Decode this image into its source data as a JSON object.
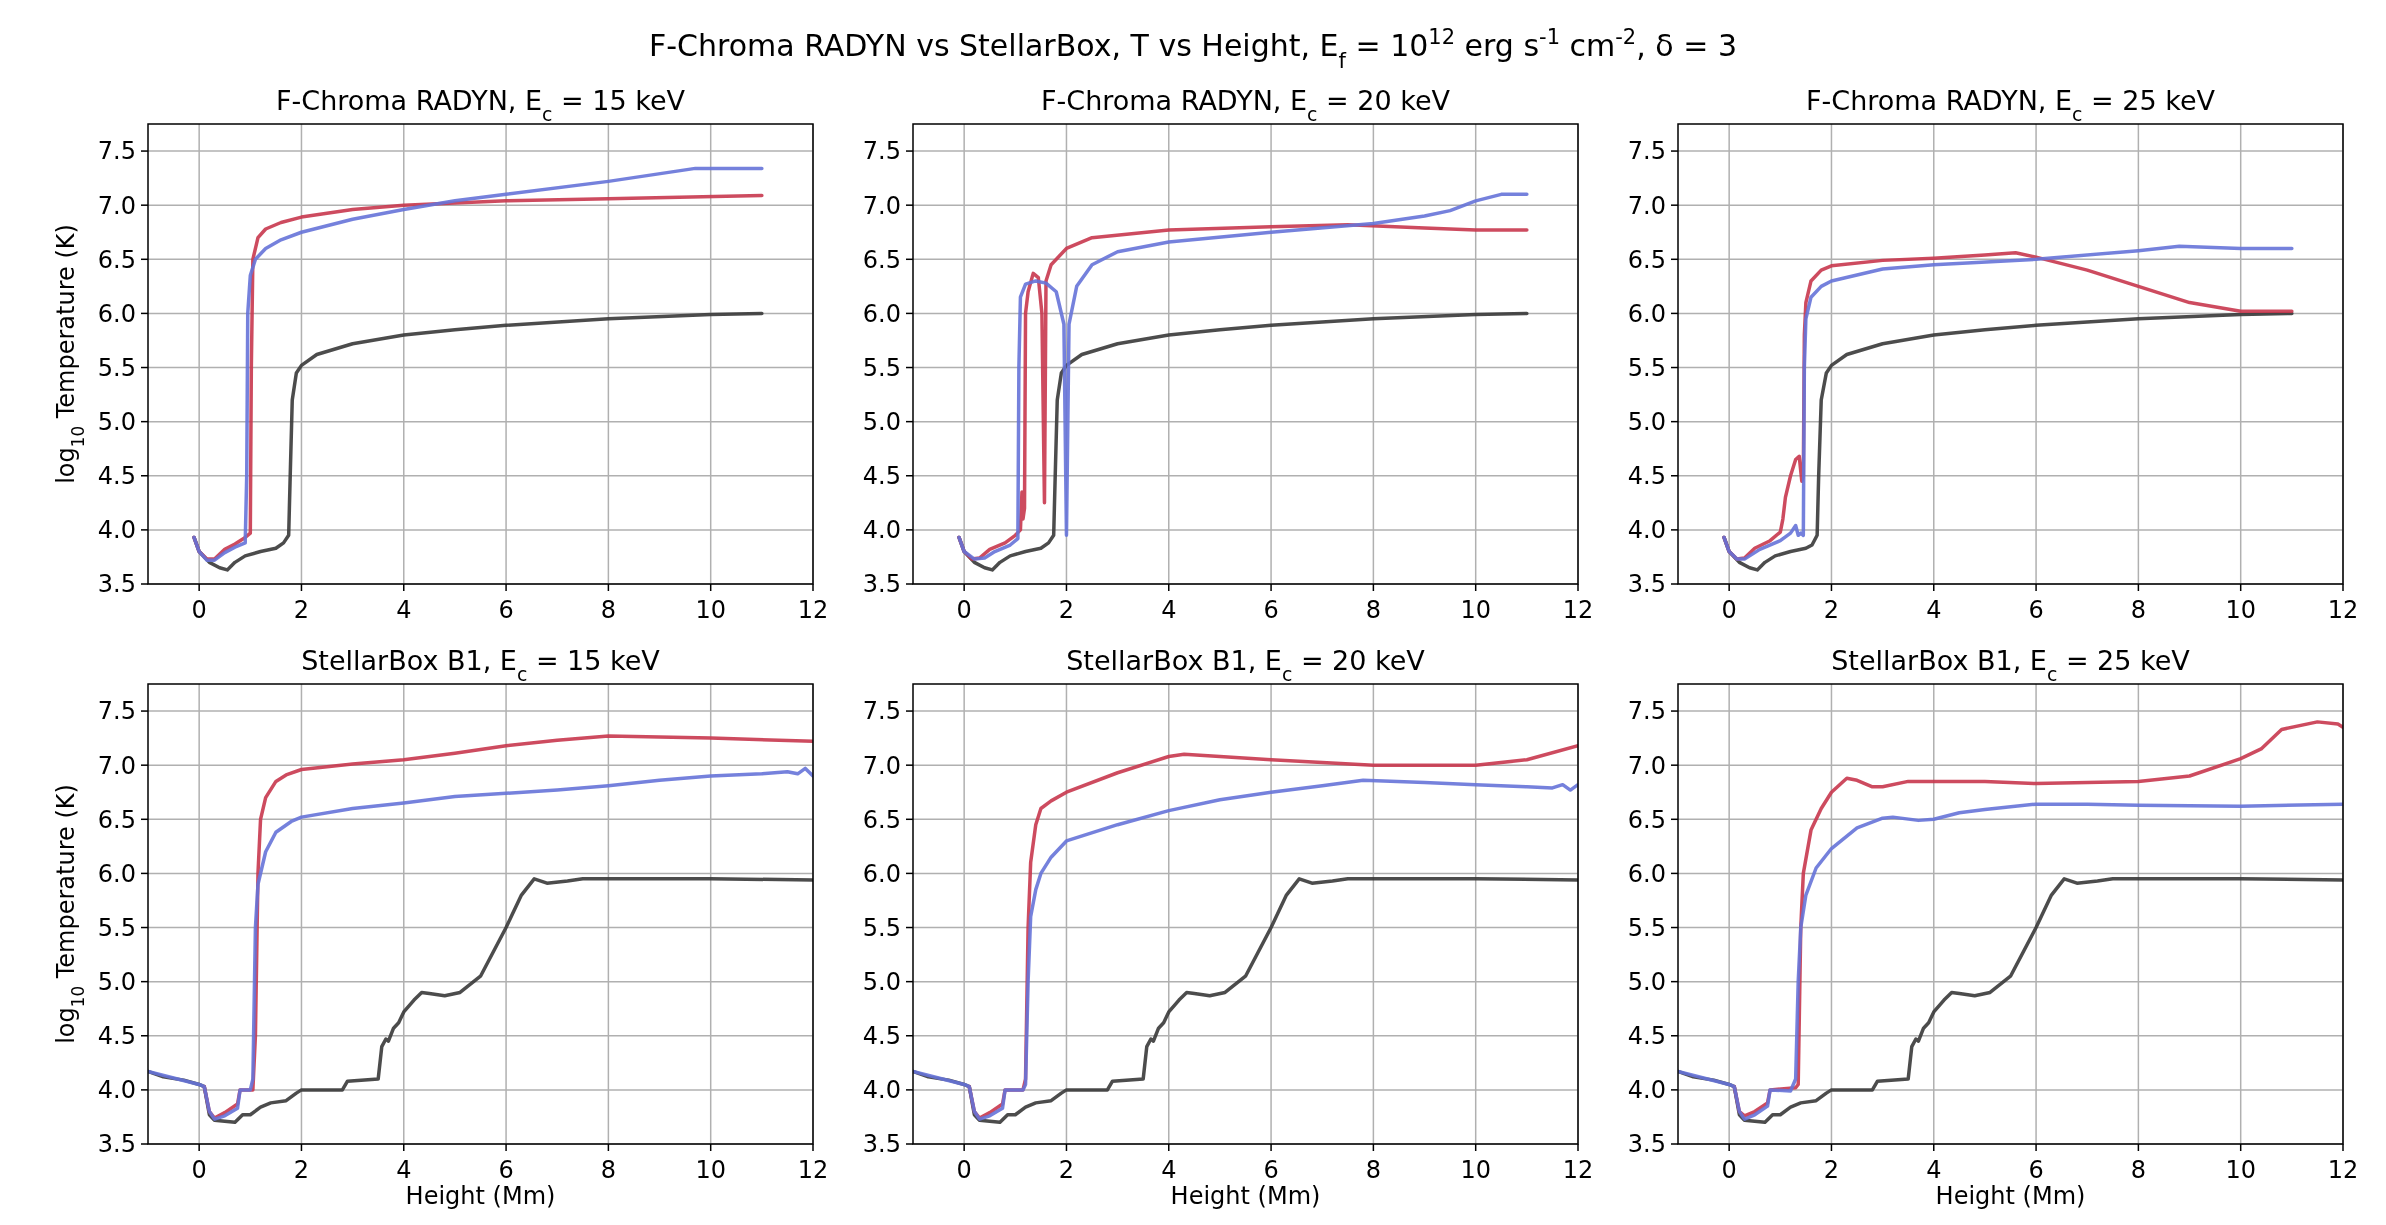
{
  "chart_data": [
    {
      "type": "line",
      "title": "F-Chroma RADYN, E$_{c}$ = 15 keV",
      "annotations": [
        "F-Chroma RADYN vs StellarBox, T vs Height, E$_{f}$ = 10$^{12}$ erg s$^{-1}$ cm$^{-2}$, δ = 3"
      ],
      "ylabel": "log$_{10}$ Temperature (K)",
      "xlim": [
        -1,
        12
      ],
      "xticks": [
        0,
        2,
        4,
        6,
        8,
        10,
        12
      ],
      "ylim": [
        3.5,
        7.75
      ],
      "yticks": [
        3.5,
        {
          "value": 4,
          "label": "4.0"
        },
        4.5,
        {
          "value": 5,
          "label": "5.0"
        },
        5.5,
        {
          "value": 6,
          "label": "6.0"
        },
        6.5,
        {
          "value": 7,
          "label": "7.0"
        },
        7.5
      ],
      "grid": true,
      "line_style": "solid",
      "series": [
        {
          "color": "#383838",
          "x": [
            -0.1,
            0,
            0.2,
            0.4,
            0.55,
            0.7,
            0.9,
            1.2,
            1.5,
            1.65,
            1.75,
            1.78,
            1.82,
            1.9,
            2,
            2.3,
            3,
            4,
            5,
            6,
            8,
            10,
            11
          ],
          "values": [
            3.93,
            3.8,
            3.7,
            3.65,
            3.63,
            3.7,
            3.76,
            3.8,
            3.83,
            3.88,
            3.95,
            4.5,
            5.2,
            5.45,
            5.52,
            5.62,
            5.72,
            5.8,
            5.85,
            5.89,
            5.95,
            5.99,
            6.0
          ]
        },
        {
          "color": "#c8374e",
          "x": [
            -0.1,
            0,
            0.15,
            0.3,
            0.5,
            0.7,
            0.9,
            1.0,
            1.02,
            1.05,
            1.15,
            1.3,
            1.6,
            2,
            3,
            4,
            6,
            8,
            11
          ],
          "values": [
            3.93,
            3.8,
            3.73,
            3.73,
            3.82,
            3.87,
            3.93,
            3.97,
            5.5,
            6.5,
            6.7,
            6.78,
            6.84,
            6.89,
            6.96,
            7.0,
            7.04,
            7.06,
            7.09
          ]
        },
        {
          "color": "#6673d8",
          "x": [
            -0.1,
            0,
            0.15,
            0.3,
            0.5,
            0.7,
            0.9,
            0.93,
            0.95,
            1.0,
            1.1,
            1.3,
            1.6,
            2,
            3,
            4,
            5,
            6,
            8,
            9.7,
            11
          ],
          "values": [
            3.93,
            3.8,
            3.72,
            3.72,
            3.79,
            3.84,
            3.88,
            4.5,
            6.0,
            6.35,
            6.5,
            6.6,
            6.68,
            6.75,
            6.87,
            6.96,
            7.04,
            7.1,
            7.22,
            7.34,
            7.34
          ]
        }
      ]
    },
    {
      "type": "line",
      "title": "F-Chroma RADYN, E$_{c}$ = 20 keV",
      "xlim": [
        -1,
        12
      ],
      "xticks": [
        0,
        2,
        4,
        6,
        8,
        10,
        12
      ],
      "ylim": [
        3.5,
        7.75
      ],
      "yticks": [
        3.5,
        {
          "value": 4,
          "label": "4.0"
        },
        4.5,
        {
          "value": 5,
          "label": "5.0"
        },
        5.5,
        {
          "value": 6,
          "label": "6.0"
        },
        6.5,
        {
          "value": 7,
          "label": "7.0"
        },
        7.5
      ],
      "grid": true,
      "line_style": "solid",
      "series": [
        {
          "color": "#383838",
          "x": [
            -0.1,
            0,
            0.2,
            0.4,
            0.55,
            0.7,
            0.9,
            1.2,
            1.5,
            1.65,
            1.75,
            1.78,
            1.82,
            1.9,
            2,
            2.3,
            3,
            4,
            5,
            6,
            8,
            10,
            11
          ],
          "values": [
            3.93,
            3.8,
            3.7,
            3.65,
            3.63,
            3.7,
            3.76,
            3.8,
            3.83,
            3.88,
            3.95,
            4.5,
            5.2,
            5.45,
            5.52,
            5.62,
            5.72,
            5.8,
            5.85,
            5.89,
            5.95,
            5.99,
            6.0
          ]
        },
        {
          "color": "#c8374e",
          "x": [
            -0.1,
            0,
            0.15,
            0.3,
            0.5,
            0.8,
            1.0,
            1.1,
            1.13,
            1.15,
            1.18,
            1.2,
            1.25,
            1.35,
            1.45,
            1.52,
            1.57,
            1.6,
            1.7,
            2,
            2.5,
            4,
            6,
            7.5,
            9,
            10,
            11
          ],
          "values": [
            3.93,
            3.8,
            3.73,
            3.74,
            3.82,
            3.88,
            3.95,
            4.0,
            4.35,
            4.1,
            4.2,
            6.0,
            6.2,
            6.37,
            6.33,
            6.0,
            4.25,
            6.3,
            6.45,
            6.6,
            6.7,
            6.77,
            6.8,
            6.82,
            6.79,
            6.77,
            6.77
          ]
        },
        {
          "color": "#6673d8",
          "x": [
            -0.1,
            0,
            0.2,
            0.4,
            0.6,
            0.9,
            1.05,
            1.07,
            1.1,
            1.2,
            1.4,
            1.6,
            1.8,
            1.95,
            2.0,
            2.05,
            2.2,
            2.5,
            3,
            4,
            6,
            8,
            9,
            9.5,
            10,
            10.5,
            11
          ],
          "values": [
            3.93,
            3.8,
            3.73,
            3.74,
            3.8,
            3.86,
            3.92,
            5.5,
            6.15,
            6.27,
            6.3,
            6.28,
            6.2,
            5.9,
            3.95,
            5.9,
            6.25,
            6.45,
            6.57,
            6.66,
            6.75,
            6.83,
            6.9,
            6.95,
            7.04,
            7.1,
            7.1
          ]
        }
      ]
    },
    {
      "type": "line",
      "title": "F-Chroma RADYN, E$_{c}$ = 25 keV",
      "xlim": [
        -1,
        12
      ],
      "xticks": [
        0,
        2,
        4,
        6,
        8,
        10,
        12
      ],
      "ylim": [
        3.5,
        7.75
      ],
      "yticks": [
        3.5,
        {
          "value": 4,
          "label": "4.0"
        },
        4.5,
        {
          "value": 5,
          "label": "5.0"
        },
        5.5,
        {
          "value": 6,
          "label": "6.0"
        },
        6.5,
        {
          "value": 7,
          "label": "7.0"
        },
        7.5
      ],
      "grid": true,
      "line_style": "solid",
      "series": [
        {
          "color": "#383838",
          "x": [
            -0.1,
            0,
            0.2,
            0.4,
            0.55,
            0.7,
            0.9,
            1.2,
            1.5,
            1.62,
            1.72,
            1.75,
            1.8,
            1.9,
            2,
            2.3,
            3,
            4,
            5,
            6,
            8,
            10,
            11
          ],
          "values": [
            3.93,
            3.8,
            3.7,
            3.65,
            3.63,
            3.7,
            3.76,
            3.8,
            3.83,
            3.86,
            3.95,
            4.5,
            5.2,
            5.45,
            5.52,
            5.62,
            5.72,
            5.8,
            5.85,
            5.89,
            5.95,
            5.99,
            6.0
          ]
        },
        {
          "color": "#c8374e",
          "x": [
            -0.1,
            0,
            0.15,
            0.3,
            0.5,
            0.8,
            1.0,
            1.05,
            1.1,
            1.2,
            1.3,
            1.37,
            1.42,
            1.45,
            1.47,
            1.5,
            1.6,
            1.8,
            2,
            3,
            4,
            5,
            5.6,
            6,
            7,
            8,
            9,
            10,
            11
          ],
          "values": [
            3.93,
            3.8,
            3.73,
            3.74,
            3.83,
            3.9,
            3.98,
            4.1,
            4.3,
            4.5,
            4.65,
            4.68,
            4.45,
            4.5,
            5.8,
            6.1,
            6.3,
            6.4,
            6.44,
            6.49,
            6.51,
            6.54,
            6.56,
            6.52,
            6.4,
            6.25,
            6.1,
            6.02,
            6.02
          ]
        },
        {
          "color": "#6673d8",
          "x": [
            -0.1,
            0,
            0.15,
            0.3,
            0.6,
            1.0,
            1.2,
            1.3,
            1.35,
            1.4,
            1.45,
            1.47,
            1.5,
            1.6,
            1.8,
            2,
            3,
            4,
            6,
            8,
            8.8,
            10,
            11
          ],
          "values": [
            3.93,
            3.8,
            3.73,
            3.73,
            3.82,
            3.9,
            3.97,
            4.04,
            3.95,
            3.97,
            3.95,
            5.5,
            5.95,
            6.15,
            6.25,
            6.3,
            6.41,
            6.45,
            6.5,
            6.58,
            6.62,
            6.6,
            6.6
          ]
        }
      ]
    },
    {
      "type": "line",
      "title": "StellarBox B1, E$_{c}$ = 15 keV",
      "ylabel": "log$_{10}$ Temperature (K)",
      "xlabel": "Height (Mm)",
      "xlim": [
        -1,
        12
      ],
      "xticks": [
        0,
        2,
        4,
        6,
        8,
        10,
        12
      ],
      "ylim": [
        3.5,
        7.75
      ],
      "yticks": [
        3.5,
        {
          "value": 4,
          "label": "4.0"
        },
        4.5,
        {
          "value": 5,
          "label": "5.0"
        },
        5.5,
        {
          "value": 6,
          "label": "6.0"
        },
        6.5,
        {
          "value": 7,
          "label": "7.0"
        },
        7.5
      ],
      "grid": true,
      "line_style": "solid",
      "series": [
        {
          "color": "#383838",
          "x": [
            -1,
            -0.7,
            -0.3,
            0,
            0.1,
            0.15,
            0.2,
            0.3,
            0.5,
            0.7,
            0.85,
            1.0,
            1.2,
            1.4,
            1.7,
            1.9,
            2,
            2.8,
            2.9,
            3.5,
            3.57,
            3.65,
            3.7,
            3.8,
            3.9,
            4.0,
            4.2,
            4.35,
            4.5,
            4.8,
            5.1,
            5.5,
            6,
            6.3,
            6.55,
            6.8,
            7.2,
            7.5,
            8,
            10,
            12
          ],
          "values": [
            4.17,
            4.12,
            4.09,
            4.05,
            4.03,
            3.9,
            3.77,
            3.72,
            3.71,
            3.7,
            3.77,
            3.77,
            3.84,
            3.88,
            3.9,
            3.97,
            4.0,
            4.0,
            4.08,
            4.1,
            4.4,
            4.47,
            4.45,
            4.57,
            4.62,
            4.72,
            4.83,
            4.9,
            4.89,
            4.87,
            4.9,
            5.05,
            5.5,
            5.8,
            5.95,
            5.91,
            5.93,
            5.95,
            5.95,
            5.95,
            5.94
          ]
        },
        {
          "color": "#c8374e",
          "x": [
            0.1,
            0.2,
            0.3,
            0.5,
            0.75,
            0.8,
            1.05,
            1.1,
            1.15,
            1.2,
            1.3,
            1.5,
            1.7,
            2,
            3,
            4,
            5,
            6,
            7,
            8,
            10,
            12
          ],
          "values": [
            4.03,
            3.8,
            3.74,
            3.79,
            3.87,
            4.0,
            4.0,
            4.5,
            6.0,
            6.5,
            6.7,
            6.85,
            6.91,
            6.96,
            7.01,
            7.05,
            7.11,
            7.18,
            7.23,
            7.27,
            7.25,
            7.22
          ]
        },
        {
          "color": "#6673d8",
          "x": [
            -1,
            -0.5,
            0,
            0.1,
            0.2,
            0.3,
            0.5,
            0.75,
            0.8,
            1.0,
            1.05,
            1.1,
            1.15,
            1.3,
            1.5,
            1.8,
            2,
            3,
            4,
            5,
            6,
            7,
            8,
            9,
            10,
            11,
            11.5,
            11.7,
            11.85,
            12
          ],
          "values": [
            4.17,
            4.11,
            4.05,
            4.03,
            3.8,
            3.73,
            3.76,
            3.83,
            4.0,
            4.0,
            4.1,
            5.5,
            5.9,
            6.2,
            6.38,
            6.48,
            6.52,
            6.6,
            6.65,
            6.71,
            6.74,
            6.77,
            6.81,
            6.86,
            6.9,
            6.92,
            6.94,
            6.92,
            6.97,
            6.9
          ]
        }
      ]
    },
    {
      "type": "line",
      "title": "StellarBox B1, E$_{c}$ = 20 keV",
      "xlabel": "Height (Mm)",
      "xlim": [
        -1,
        12
      ],
      "xticks": [
        0,
        2,
        4,
        6,
        8,
        10,
        12
      ],
      "ylim": [
        3.5,
        7.75
      ],
      "yticks": [
        3.5,
        {
          "value": 4,
          "label": "4.0"
        },
        4.5,
        {
          "value": 5,
          "label": "5.0"
        },
        5.5,
        {
          "value": 6,
          "label": "6.0"
        },
        6.5,
        {
          "value": 7,
          "label": "7.0"
        },
        7.5
      ],
      "grid": true,
      "line_style": "solid",
      "series": [
        {
          "color": "#383838",
          "x": [
            -1,
            -0.7,
            -0.3,
            0,
            0.1,
            0.15,
            0.2,
            0.3,
            0.5,
            0.7,
            0.85,
            1.0,
            1.2,
            1.4,
            1.7,
            1.9,
            2,
            2.8,
            2.9,
            3.5,
            3.57,
            3.65,
            3.7,
            3.8,
            3.9,
            4.0,
            4.2,
            4.35,
            4.5,
            4.8,
            5.1,
            5.5,
            6,
            6.3,
            6.55,
            6.8,
            7.2,
            7.5,
            8,
            10,
            12
          ],
          "values": [
            4.17,
            4.12,
            4.09,
            4.05,
            4.03,
            3.9,
            3.77,
            3.72,
            3.71,
            3.7,
            3.77,
            3.77,
            3.84,
            3.88,
            3.9,
            3.97,
            4.0,
            4.0,
            4.08,
            4.1,
            4.4,
            4.47,
            4.45,
            4.57,
            4.62,
            4.72,
            4.83,
            4.9,
            4.89,
            4.87,
            4.9,
            5.05,
            5.5,
            5.8,
            5.95,
            5.91,
            5.93,
            5.95,
            5.95,
            5.95,
            5.94
          ]
        },
        {
          "color": "#c8374e",
          "x": [
            0.1,
            0.2,
            0.3,
            0.5,
            0.75,
            0.8,
            1.15,
            1.2,
            1.25,
            1.3,
            1.4,
            1.5,
            1.7,
            2,
            3,
            4,
            4.3,
            5,
            6,
            8,
            10,
            11,
            12
          ],
          "values": [
            4.03,
            3.8,
            3.74,
            3.79,
            3.87,
            4.0,
            4.0,
            4.1,
            5.5,
            6.1,
            6.45,
            6.6,
            6.67,
            6.75,
            6.93,
            7.08,
            7.1,
            7.08,
            7.05,
            7.0,
            7.0,
            7.05,
            7.18
          ]
        },
        {
          "color": "#6673d8",
          "x": [
            -1,
            -0.5,
            0,
            0.1,
            0.2,
            0.3,
            0.5,
            0.75,
            0.8,
            1.15,
            1.2,
            1.25,
            1.3,
            1.4,
            1.5,
            1.7,
            2,
            3,
            4,
            5,
            6,
            7,
            7.8,
            9,
            10,
            11,
            11.5,
            11.7,
            11.85,
            12
          ],
          "values": [
            4.17,
            4.11,
            4.05,
            4.03,
            3.8,
            3.73,
            3.76,
            3.83,
            4.0,
            4.0,
            4.05,
            5.0,
            5.6,
            5.85,
            6.0,
            6.15,
            6.3,
            6.45,
            6.58,
            6.68,
            6.75,
            6.81,
            6.86,
            6.84,
            6.82,
            6.8,
            6.79,
            6.82,
            6.77,
            6.82
          ]
        }
      ]
    },
    {
      "type": "line",
      "title": "StellarBox B1, E$_{c}$ = 25 keV",
      "xlabel": "Height (Mm)",
      "xlim": [
        -1,
        12
      ],
      "xticks": [
        0,
        2,
        4,
        6,
        8,
        10,
        12
      ],
      "ylim": [
        3.5,
        7.75
      ],
      "yticks": [
        3.5,
        {
          "value": 4,
          "label": "4.0"
        },
        4.5,
        {
          "value": 5,
          "label": "5.0"
        },
        5.5,
        {
          "value": 6,
          "label": "6.0"
        },
        6.5,
        {
          "value": 7,
          "label": "7.0"
        },
        7.5
      ],
      "grid": true,
      "line_style": "solid",
      "series": [
        {
          "color": "#383838",
          "x": [
            -1,
            -0.7,
            -0.3,
            0,
            0.1,
            0.15,
            0.2,
            0.3,
            0.5,
            0.7,
            0.85,
            1.0,
            1.2,
            1.4,
            1.7,
            1.9,
            2,
            2.8,
            2.9,
            3.5,
            3.57,
            3.65,
            3.7,
            3.8,
            3.9,
            4.0,
            4.2,
            4.35,
            4.5,
            4.8,
            5.1,
            5.5,
            6,
            6.3,
            6.55,
            6.8,
            7.2,
            7.5,
            8,
            10,
            12
          ],
          "values": [
            4.17,
            4.12,
            4.09,
            4.05,
            4.03,
            3.9,
            3.77,
            3.72,
            3.71,
            3.7,
            3.77,
            3.77,
            3.84,
            3.88,
            3.9,
            3.97,
            4.0,
            4.0,
            4.08,
            4.1,
            4.4,
            4.47,
            4.45,
            4.57,
            4.62,
            4.72,
            4.83,
            4.9,
            4.89,
            4.87,
            4.9,
            5.05,
            5.5,
            5.8,
            5.95,
            5.91,
            5.93,
            5.95,
            5.95,
            5.95,
            5.94
          ]
        },
        {
          "color": "#c8374e",
          "x": [
            0.1,
            0.2,
            0.3,
            0.5,
            0.75,
            0.8,
            1.3,
            1.35,
            1.4,
            1.45,
            1.6,
            1.8,
            2,
            2.3,
            2.5,
            2.8,
            3,
            3.5,
            5,
            6,
            8,
            9,
            10,
            10.4,
            10.8,
            11.5,
            11.9,
            12
          ],
          "values": [
            4.03,
            3.8,
            3.76,
            3.8,
            3.88,
            4.0,
            4.02,
            4.05,
            5.5,
            6.0,
            6.4,
            6.6,
            6.75,
            6.88,
            6.86,
            6.8,
            6.8,
            6.85,
            6.85,
            6.83,
            6.85,
            6.9,
            7.06,
            7.15,
            7.33,
            7.4,
            7.38,
            7.35
          ]
        },
        {
          "color": "#6673d8",
          "x": [
            -1,
            -0.5,
            0,
            0.1,
            0.2,
            0.3,
            0.5,
            0.75,
            0.8,
            1.2,
            1.3,
            1.35,
            1.4,
            1.5,
            1.7,
            2,
            2.5,
            3,
            3.2,
            3.7,
            4,
            4.5,
            5,
            6,
            7,
            8,
            10,
            12
          ],
          "values": [
            4.17,
            4.11,
            4.05,
            4.03,
            3.8,
            3.73,
            3.77,
            3.85,
            4.0,
            3.99,
            4.1,
            5.0,
            5.5,
            5.8,
            6.05,
            6.23,
            6.42,
            6.51,
            6.52,
            6.49,
            6.5,
            6.56,
            6.59,
            6.64,
            6.64,
            6.63,
            6.62,
            6.64
          ]
        }
      ]
    }
  ]
}
